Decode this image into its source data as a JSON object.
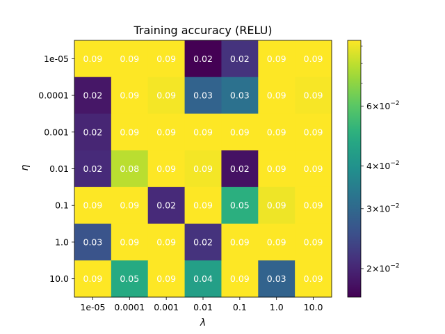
{
  "chart_data": {
    "type": "heatmap",
    "title": "Training accuracy (RELU)",
    "xlabel": "λ",
    "ylabel": "η",
    "x_categories": [
      "1e-05",
      "0.0001",
      "0.001",
      "0.01",
      "0.1",
      "1.0",
      "10.0"
    ],
    "y_categories": [
      "1e-05",
      "0.0001",
      "0.001",
      "0.01",
      "0.1",
      "1.0",
      "10.0"
    ],
    "values": [
      [
        0.0935,
        0.0935,
        0.0935,
        0.0165,
        0.0215,
        0.0935,
        0.0935
      ],
      [
        0.0185,
        0.0935,
        0.0915,
        0.029,
        0.032,
        0.0935,
        0.092
      ],
      [
        0.02,
        0.0935,
        0.0935,
        0.0935,
        0.0935,
        0.0935,
        0.0935
      ],
      [
        0.0205,
        0.079,
        0.0935,
        0.0915,
        0.018,
        0.0935,
        0.0935
      ],
      [
        0.0935,
        0.0935,
        0.0205,
        0.0935,
        0.05,
        0.09,
        0.0935
      ],
      [
        0.026,
        0.0935,
        0.0935,
        0.0215,
        0.0935,
        0.0935,
        0.0935
      ],
      [
        0.0935,
        0.048,
        0.0935,
        0.044,
        0.0935,
        0.029,
        0.0935
      ]
    ],
    "cell_labels": [
      [
        "0.09",
        "0.09",
        "0.09",
        "0.02",
        "0.02",
        "0.09",
        "0.09"
      ],
      [
        "0.02",
        "0.09",
        "0.09",
        "0.03",
        "0.03",
        "0.09",
        "0.09"
      ],
      [
        "0.02",
        "0.09",
        "0.09",
        "0.09",
        "0.09",
        "0.09",
        "0.09"
      ],
      [
        "0.02",
        "0.08",
        "0.09",
        "0.09",
        "0.02",
        "0.09",
        "0.09"
      ],
      [
        "0.09",
        "0.09",
        "0.02",
        "0.09",
        "0.05",
        "0.09",
        "0.09"
      ],
      [
        "0.03",
        "0.09",
        "0.09",
        "0.02",
        "0.09",
        "0.09",
        "0.09"
      ],
      [
        "0.09",
        "0.05",
        "0.09",
        "0.04",
        "0.09",
        "0.03",
        "0.09"
      ]
    ],
    "colormap": "viridis",
    "color_scale": "log",
    "vlim": [
      0.0165,
      0.0935
    ],
    "colorbar": {
      "scale": "log",
      "ticks": [
        {
          "value": 0.02,
          "base": "2",
          "exp": "−2"
        },
        {
          "value": 0.03,
          "base": "3",
          "exp": "−2"
        },
        {
          "value": 0.04,
          "base": "4",
          "exp": "−2"
        },
        {
          "value": 0.06,
          "base": "6",
          "exp": "−2"
        }
      ],
      "minor_ticks": [
        0.07,
        0.08,
        0.09
      ]
    }
  }
}
